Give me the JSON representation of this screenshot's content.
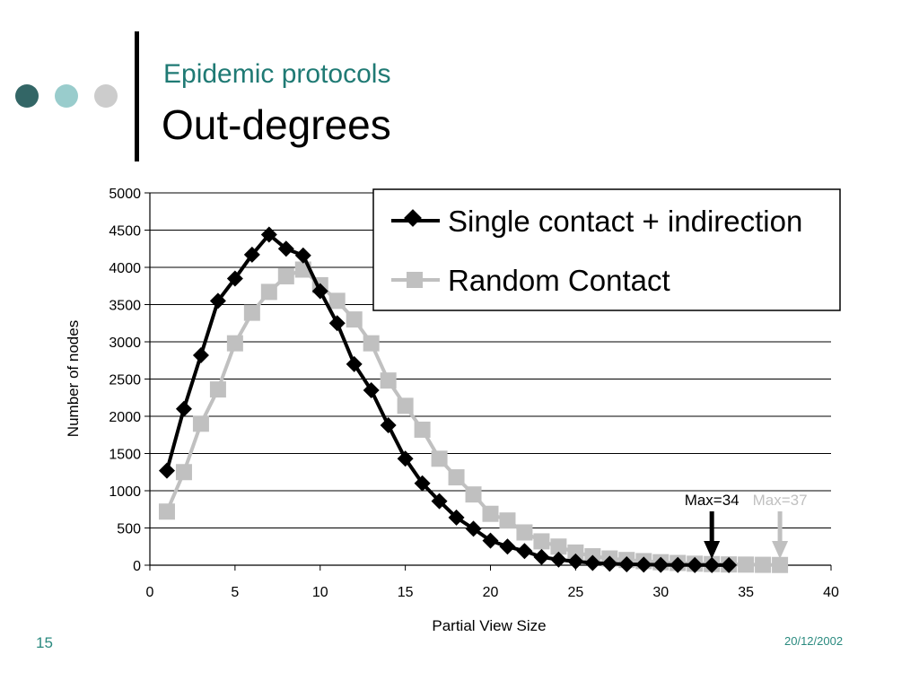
{
  "slide": {
    "subtitle": "Epidemic protocols",
    "title": "Out-degrees",
    "number": "15",
    "date": "20/12/2002",
    "dot_colors": [
      "#336666",
      "#99cccc",
      "#cccccc"
    ]
  },
  "chart_data": {
    "type": "line",
    "xlabel": "Partial View Size",
    "ylabel": "Number of nodes",
    "xlim": [
      0,
      40
    ],
    "ylim": [
      0,
      5000
    ],
    "xticks": [
      0,
      5,
      10,
      15,
      20,
      25,
      30,
      35,
      40
    ],
    "yticks": [
      0,
      500,
      1000,
      1500,
      2000,
      2500,
      3000,
      3500,
      4000,
      4500,
      5000
    ],
    "grid": "horizontal",
    "legend_position": "top-right",
    "series": [
      {
        "name": "Single contact + indirection",
        "color": "#000000",
        "marker": "diamond",
        "x": [
          1,
          2,
          3,
          4,
          5,
          6,
          7,
          8,
          9,
          10,
          11,
          12,
          13,
          14,
          15,
          16,
          17,
          18,
          19,
          20,
          21,
          22,
          23,
          24,
          25,
          26,
          27,
          28,
          29,
          30,
          31,
          32,
          33,
          34
        ],
        "y": [
          1270,
          2100,
          2820,
          3550,
          3850,
          4170,
          4440,
          4250,
          4160,
          3680,
          3250,
          2700,
          2350,
          1880,
          1430,
          1100,
          860,
          640,
          490,
          330,
          250,
          190,
          110,
          75,
          50,
          30,
          20,
          12,
          8,
          5,
          3,
          2,
          1,
          1
        ]
      },
      {
        "name": "Random Contact",
        "color": "#c0c0c0",
        "marker": "square",
        "x": [
          1,
          2,
          3,
          4,
          5,
          6,
          7,
          8,
          9,
          10,
          11,
          12,
          13,
          14,
          15,
          16,
          17,
          18,
          19,
          20,
          21,
          22,
          23,
          24,
          25,
          26,
          27,
          28,
          29,
          30,
          31,
          32,
          33,
          34,
          35,
          36,
          37
        ],
        "y": [
          720,
          1250,
          1900,
          2360,
          2980,
          3390,
          3670,
          3880,
          3970,
          3760,
          3550,
          3300,
          2980,
          2480,
          2140,
          1820,
          1430,
          1180,
          950,
          690,
          600,
          440,
          320,
          250,
          170,
          120,
          90,
          70,
          55,
          40,
          30,
          20,
          15,
          10,
          8,
          5,
          3
        ]
      }
    ],
    "annotations": [
      {
        "text": "Max=34",
        "x": 33,
        "color": "#000000"
      },
      {
        "text": "Max=37",
        "x": 37,
        "color": "#c0c0c0"
      }
    ]
  }
}
